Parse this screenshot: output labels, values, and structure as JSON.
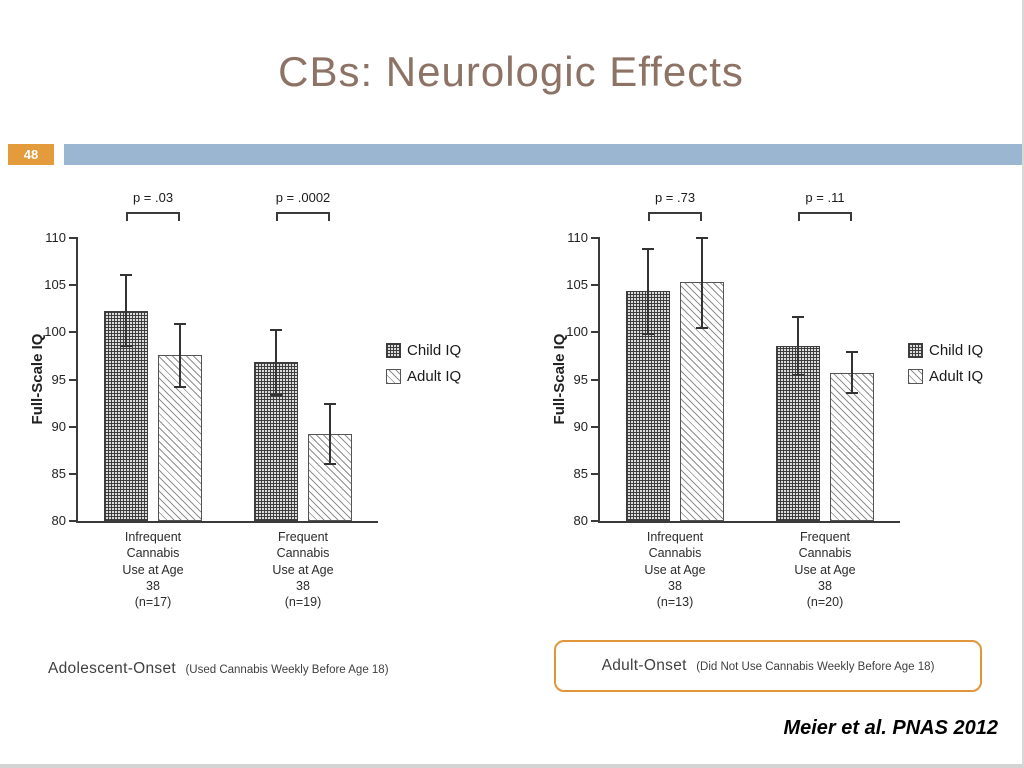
{
  "slide": {
    "title": "CBs: Neurologic Effects",
    "slide_number": "48",
    "citation": "Meier et al. PNAS 2012"
  },
  "colors": {
    "title_text": "#8d7365",
    "header_band": "#9bb6d1",
    "slide_number_bg": "#e39b3c",
    "callout_border": "#e0973a"
  },
  "chart_data": [
    {
      "type": "bar",
      "title": "Adolescent-Onset",
      "ylabel": "Full-Scale IQ",
      "ylim": [
        80,
        110
      ],
      "yticks": [
        80,
        85,
        90,
        95,
        100,
        105,
        110
      ],
      "grid": false,
      "legend_position": "right",
      "categories": [
        "Infrequent\nCannabis\nUse at Age\n38\n(n=17)",
        "Frequent\nCannabis\nUse at Age\n38\n(n=19)"
      ],
      "series": [
        {
          "name": "Child IQ",
          "pattern": "dense",
          "values": [
            {
              "value": 102.3,
              "lo": 98.6,
              "hi": 106.1
            },
            {
              "value": 96.9,
              "lo": 93.4,
              "hi": 100.3
            }
          ]
        },
        {
          "name": "Adult IQ",
          "pattern": "diag",
          "values": [
            {
              "value": 97.6,
              "lo": 94.2,
              "hi": 100.9
            },
            {
              "value": 89.2,
              "lo": 86.0,
              "hi": 92.4
            }
          ]
        }
      ],
      "p_values": [
        "p = .03",
        "p = .0002"
      ],
      "footer": {
        "main": "Adolescent-Onset",
        "detail": "(Used Cannabis Weekly Before Age 18)",
        "boxed": false
      }
    },
    {
      "type": "bar",
      "title": "Adult-Onset",
      "ylabel": "Full-Scale IQ",
      "ylim": [
        80,
        110
      ],
      "yticks": [
        80,
        85,
        90,
        95,
        100,
        105,
        110
      ],
      "grid": false,
      "legend_position": "right",
      "categories": [
        "Infrequent\nCannabis\nUse at Age\n38\n(n=13)",
        "Frequent\nCannabis\nUse at Age\n38\n(n=20)"
      ],
      "series": [
        {
          "name": "Child IQ",
          "pattern": "dense",
          "values": [
            {
              "value": 104.4,
              "lo": 99.8,
              "hi": 108.8
            },
            {
              "value": 98.6,
              "lo": 95.5,
              "hi": 101.6
            }
          ]
        },
        {
          "name": "Adult IQ",
          "pattern": "diag",
          "values": [
            {
              "value": 105.3,
              "lo": 100.5,
              "hi": 110.0
            },
            {
              "value": 95.7,
              "lo": 93.6,
              "hi": 97.9
            }
          ]
        }
      ],
      "p_values": [
        "p = .73",
        "p = .11"
      ],
      "footer": {
        "main": "Adult-Onset",
        "detail": "(Did Not Use Cannabis Weekly Before Age 18)",
        "boxed": true
      }
    }
  ]
}
